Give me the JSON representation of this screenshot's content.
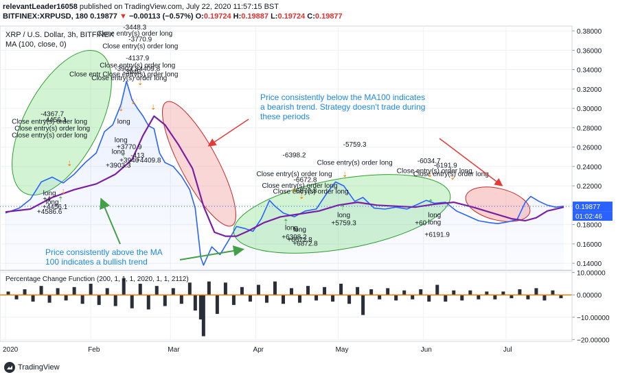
{
  "header": {
    "author": "relevantLeader16058",
    "published_text": "published on TradingView.com, July 22, 2020 11:57:15 BST",
    "symbol_line_prefix": "BITFINEX:XRPUSD, 180",
    "last_price": "0.19877",
    "change": "−0.00113 (−0.57%)",
    "o_label": "O:",
    "o_val": "0.19724",
    "h_label": "H:",
    "h_val": "0.19887",
    "l_label": "L:",
    "l_val": "0.19724",
    "c_label": "C:",
    "c_val": "0.19877"
  },
  "chart_data": [
    {
      "type": "line",
      "pane": "main",
      "title": "XRP / U.S. Dollar, 3h, BITFINEX",
      "indicator_label": "MA (100, close, 0)",
      "x_ticks": [
        "2020",
        "Feb",
        "Mar",
        "Apr",
        "May",
        "Jun",
        "Jul"
      ],
      "y_ticks": [
        "0.14000",
        "0.16000",
        "0.18000",
        "0.20000",
        "0.22000",
        "0.24000",
        "0.26000",
        "0.28000",
        "0.30000",
        "0.32000",
        "0.34000",
        "0.36000",
        "0.38000"
      ],
      "ylim": [
        0.133,
        0.385
      ],
      "scale": "linear",
      "grid": true,
      "series": [
        {
          "name": "XRP / U.S. Dollar",
          "color": "#2962ff",
          "x": [
            "2020-01-01",
            "2020-01-06",
            "2020-01-10",
            "2020-01-14",
            "2020-01-18",
            "2020-01-22",
            "2020-01-26",
            "2020-01-30",
            "2020-02-03",
            "2020-02-06",
            "2020-02-09",
            "2020-02-12",
            "2020-02-14",
            "2020-02-16",
            "2020-02-18",
            "2020-02-20",
            "2020-02-22",
            "2020-02-24",
            "2020-02-26",
            "2020-02-28",
            "2020-03-02",
            "2020-03-05",
            "2020-03-08",
            "2020-03-10",
            "2020-03-12",
            "2020-03-13",
            "2020-03-16",
            "2020-03-19",
            "2020-03-22",
            "2020-03-25",
            "2020-03-28",
            "2020-03-31",
            "2020-04-03",
            "2020-04-06",
            "2020-04-08",
            "2020-04-11",
            "2020-04-15",
            "2020-04-19",
            "2020-04-23",
            "2020-04-27",
            "2020-04-30",
            "2020-05-03",
            "2020-05-07",
            "2020-05-10",
            "2020-05-14",
            "2020-05-18",
            "2020-05-22",
            "2020-05-26",
            "2020-05-30",
            "2020-06-02",
            "2020-06-05",
            "2020-06-09",
            "2020-06-13",
            "2020-06-17",
            "2020-06-21",
            "2020-06-25",
            "2020-06-28",
            "2020-07-02",
            "2020-07-05",
            "2020-07-08",
            "2020-07-10",
            "2020-07-13",
            "2020-07-16",
            "2020-07-19",
            "2020-07-22"
          ],
          "y": [
            0.192,
            0.197,
            0.206,
            0.224,
            0.229,
            0.223,
            0.232,
            0.244,
            0.254,
            0.276,
            0.283,
            0.304,
            0.328,
            0.309,
            0.3,
            0.292,
            0.282,
            0.279,
            0.254,
            0.244,
            0.24,
            0.23,
            0.216,
            0.197,
            0.146,
            0.138,
            0.157,
            0.149,
            0.163,
            0.178,
            0.176,
            0.173,
            0.186,
            0.205,
            0.199,
            0.192,
            0.188,
            0.194,
            0.196,
            0.213,
            0.224,
            0.22,
            0.204,
            0.208,
            0.197,
            0.196,
            0.198,
            0.196,
            0.201,
            0.205,
            0.202,
            0.203,
            0.194,
            0.189,
            0.184,
            0.182,
            0.181,
            0.183,
            0.185,
            0.203,
            0.209,
            0.204,
            0.2,
            0.198,
            0.199
          ]
        },
        {
          "name": "MA (100, close, 0)",
          "color": "#7b1fa2",
          "x": [
            "2020-01-01",
            "2020-01-10",
            "2020-01-18",
            "2020-01-26",
            "2020-02-03",
            "2020-02-10",
            "2020-02-16",
            "2020-02-20",
            "2020-02-24",
            "2020-02-28",
            "2020-03-04",
            "2020-03-09",
            "2020-03-13",
            "2020-03-17",
            "2020-03-21",
            "2020-03-25",
            "2020-03-29",
            "2020-04-04",
            "2020-04-10",
            "2020-04-17",
            "2020-04-24",
            "2020-05-01",
            "2020-05-08",
            "2020-05-15",
            "2020-05-22",
            "2020-05-29",
            "2020-06-05",
            "2020-06-12",
            "2020-06-19",
            "2020-06-26",
            "2020-07-03",
            "2020-07-08",
            "2020-07-12",
            "2020-07-16",
            "2020-07-22"
          ],
          "y": [
            0.193,
            0.196,
            0.208,
            0.216,
            0.222,
            0.232,
            0.247,
            0.272,
            0.292,
            0.283,
            0.262,
            0.238,
            0.199,
            0.172,
            0.168,
            0.168,
            0.173,
            0.182,
            0.188,
            0.191,
            0.194,
            0.2,
            0.203,
            0.2,
            0.199,
            0.198,
            0.201,
            0.203,
            0.198,
            0.192,
            0.186,
            0.184,
            0.187,
            0.194,
            0.198
          ]
        }
      ],
      "last_price_label": "0.19877",
      "countdown_label": "01:02:46",
      "annotations": {
        "bull_text": [
          "Price consistently above the MA",
          "100 indicates a bullish trend"
        ],
        "bear_text": [
          "Price consistently below the MA100 indicates",
          "a bearish trend. Strategy doesn't trade during",
          "these periods"
        ],
        "trade_labels": [
          {
            "text": "-3448.3",
            "x": "2020-02-17",
            "y": 0.3815
          },
          {
            "text": "Close entry(s) order long",
            "x": "2020-02-17",
            "y": 0.375
          },
          {
            "text": "-3770.9",
            "x": "2020-02-19",
            "y": 0.369
          },
          {
            "text": "Close entry(s) order long",
            "x": "2020-02-19",
            "y": 0.362
          },
          {
            "text": "-4137.9",
            "x": "2020-02-18",
            "y": 0.3495
          },
          {
            "text": "Close entry(s) order long",
            "x": "2020-02-18",
            "y": 0.342
          },
          {
            "text": "-3903.3",
            "x": "2020-02-14",
            "y": 0.3385
          },
          {
            "text": "-3940",
            "x": "2020-02-16",
            "y": 0.3355
          },
          {
            "text": "-4409.8",
            "x": "2020-02-22",
            "y": 0.3385
          },
          {
            "text": "Close entr Close entry(s) order long",
            "x": "2020-02-13",
            "y": 0.333
          },
          {
            "text": "Close entry(s) order long",
            "x": "2020-02-15",
            "y": 0.329
          },
          {
            "text": "-4367.7",
            "x": "2020-01-18",
            "y": 0.292
          },
          {
            "text": "Close entry(s) order long",
            "x": "2020-01-17",
            "y": 0.284
          },
          {
            "text": "Close entry(s) order long",
            "x": "2020-01-18",
            "y": 0.277
          },
          {
            "text": "Close entry(s) order long",
            "x": "2020-01-17",
            "y": 0.27
          },
          {
            "text": "-4456.1",
            "x": "2020-01-19",
            "y": 0.286
          },
          {
            "text": "long",
            "x": "2020-02-13",
            "y": 0.284
          },
          {
            "text": "long",
            "x": "2020-02-12",
            "y": 0.265
          },
          {
            "text": "+3770.9",
            "x": "2020-02-15",
            "y": 0.258
          },
          {
            "text": "long",
            "x": "2020-02-11",
            "y": 0.253
          },
          {
            "text": "+3940",
            "x": "2020-02-15",
            "y": 0.244
          },
          {
            "text": "-413",
            "x": "2020-02-18",
            "y": 0.249
          },
          {
            "text": "+3903.3",
            "x": "2020-02-11",
            "y": 0.239
          },
          {
            "text": "+4409.8",
            "x": "2020-02-22",
            "y": 0.244
          },
          {
            "text": "long",
            "x": "2020-01-17",
            "y": 0.21
          },
          {
            "text": "+4",
            "x": "2020-01-16",
            "y": 0.204
          },
          {
            "text": "long",
            "x": "2020-01-18",
            "y": 0.201
          },
          {
            "text": "+4456.1",
            "x": "2020-01-19",
            "y": 0.196
          },
          {
            "text": "+4586.6",
            "x": "2020-01-17",
            "y": 0.191
          },
          {
            "text": "-6398.2",
            "x": "2020-04-15",
            "y": 0.2495
          },
          {
            "text": "Close entry(s) order long",
            "x": "2020-04-15",
            "y": 0.23
          },
          {
            "text": "-6672.8",
            "x": "2020-04-19",
            "y": 0.224
          },
          {
            "text": "Close entry(s) order long",
            "x": "2020-04-17",
            "y": 0.218
          },
          {
            "text": "-6872.8",
            "x": "2020-04-19",
            "y": 0.2125
          },
          {
            "text": "Close entry(s) order long",
            "x": "2020-04-21",
            "y": 0.212
          },
          {
            "text": "-5759.3",
            "x": "2020-05-07",
            "y": 0.2605
          },
          {
            "text": "Close entry(s) order long",
            "x": "2020-05-07",
            "y": 0.2415
          },
          {
            "text": "long",
            "x": "2020-04-14",
            "y": 0.1745
          },
          {
            "text": "long",
            "x": "2020-04-17",
            "y": 0.1725
          },
          {
            "text": "+6398.2",
            "x": "2020-04-15",
            "y": 0.165
          },
          {
            "text": "+6672.8",
            "x": "2020-04-17",
            "y": 0.162
          },
          {
            "text": "+6872.8",
            "x": "2020-04-19",
            "y": 0.158
          },
          {
            "text": "long",
            "x": "2020-05-03",
            "y": 0.1875
          },
          {
            "text": "+5759.3",
            "x": "2020-05-03",
            "y": 0.1795
          },
          {
            "text": "-6034.7",
            "x": "2020-06-03",
            "y": 0.2435
          },
          {
            "text": "-6191.9",
            "x": "2020-06-09",
            "y": 0.239
          },
          {
            "text": "Close entry(s) order long",
            "x": "2020-06-05",
            "y": 0.233
          },
          {
            "text": "Close entry(s) order long",
            "x": "2020-06-11",
            "y": 0.23
          },
          {
            "text": "long",
            "x": "2020-06-05",
            "y": 0.1875
          },
          {
            "text": "+60",
            "x": "2020-05-31",
            "y": 0.1795
          },
          {
            "text": "long",
            "x": "2020-06-05",
            "y": 0.18
          },
          {
            "text": "+6191.9",
            "x": "2020-06-06",
            "y": 0.1675
          }
        ]
      }
    },
    {
      "type": "bar",
      "pane": "oscillator",
      "title": "Percentage Change Function (200, 1, 1, 1, 2020, 1, 1, 2112)",
      "y_ticks": [
        "10.00000",
        "0.00000",
        "−10.00000",
        "−20.00000"
      ],
      "ylim": [
        -20.8,
        10.8
      ],
      "zero_line_color": "#f57c00",
      "series": [
        {
          "name": "Percentage Change",
          "x": [
            "2020-01-02",
            "2020-01-05",
            "2020-01-08",
            "2020-01-11",
            "2020-01-14",
            "2020-01-17",
            "2020-01-20",
            "2020-01-23",
            "2020-01-26",
            "2020-01-29",
            "2020-02-01",
            "2020-02-04",
            "2020-02-07",
            "2020-02-10",
            "2020-02-13",
            "2020-02-16",
            "2020-02-19",
            "2020-02-22",
            "2020-02-25",
            "2020-02-28",
            "2020-03-02",
            "2020-03-05",
            "2020-03-08",
            "2020-03-10",
            "2020-03-12",
            "2020-03-13",
            "2020-03-15",
            "2020-03-18",
            "2020-03-21",
            "2020-03-24",
            "2020-03-27",
            "2020-03-30",
            "2020-04-02",
            "2020-04-05",
            "2020-04-08",
            "2020-04-11",
            "2020-04-14",
            "2020-04-17",
            "2020-04-20",
            "2020-04-23",
            "2020-04-26",
            "2020-04-29",
            "2020-05-02",
            "2020-05-05",
            "2020-05-08",
            "2020-05-10",
            "2020-05-13",
            "2020-05-16",
            "2020-05-19",
            "2020-05-22",
            "2020-05-25",
            "2020-05-28",
            "2020-05-31",
            "2020-06-03",
            "2020-06-06",
            "2020-06-09",
            "2020-06-12",
            "2020-06-15",
            "2020-06-18",
            "2020-06-21",
            "2020-06-24",
            "2020-06-27",
            "2020-06-30",
            "2020-07-03",
            "2020-07-06",
            "2020-07-09",
            "2020-07-12",
            "2020-07-15",
            "2020-07-18",
            "2020-07-21"
          ],
          "values": [
            1.5,
            -2.0,
            2.5,
            -3.0,
            4.0,
            -3.5,
            3.0,
            -2.5,
            3.5,
            -4.0,
            5.0,
            -4.5,
            3.0,
            -5.0,
            7.5,
            -6.0,
            5.0,
            -6.5,
            4.0,
            -5.0,
            3.0,
            -4.0,
            5.5,
            -7.0,
            -11.0,
            -18.5,
            6.0,
            -8.5,
            5.5,
            -4.5,
            3.5,
            -3.0,
            4.5,
            -3.5,
            6.0,
            -4.0,
            3.0,
            -3.5,
            4.0,
            -2.5,
            3.5,
            -3.0,
            5.0,
            -4.0,
            3.5,
            -9.0,
            2.5,
            -2.0,
            3.0,
            -2.5,
            2.0,
            -2.0,
            2.5,
            -3.0,
            4.5,
            -3.0,
            2.0,
            -2.5,
            2.0,
            -2.0,
            1.5,
            -2.0,
            1.5,
            -1.5,
            2.5,
            -2.0,
            3.0,
            -2.5,
            2.0,
            -1.5
          ]
        }
      ]
    }
  ],
  "footer": {
    "logo_text": "TradingView"
  }
}
